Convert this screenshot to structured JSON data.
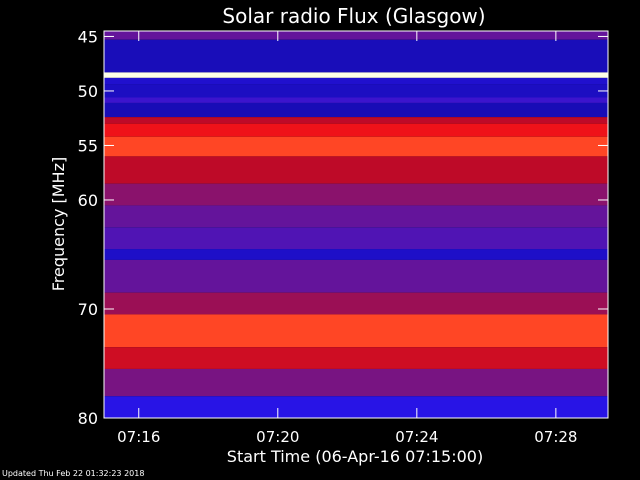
{
  "footer": {
    "updated": "Updated Thu Feb 22 01:32:23 2018"
  },
  "chart_data": {
    "type": "heatmap",
    "title": "Solar radio Flux (Glasgow)",
    "xlabel": "Start Time (06-Apr-16 07:15:00)",
    "ylabel": "Frequency [MHz]",
    "x_ticks": [
      "07:16",
      "07:20",
      "07:24",
      "07:28"
    ],
    "x_tick_minutes": [
      1,
      5,
      9,
      13
    ],
    "xlim_minutes": [
      0,
      14.5
    ],
    "y_ticks": [
      45,
      50,
      55,
      60,
      70,
      80
    ],
    "ylim": [
      80,
      44.5
    ],
    "colors": {
      "background": "#000000",
      "low": "#1a10b0",
      "mid": "#7a0a6a",
      "high": "#ff1010",
      "peak": "#ffffff"
    },
    "bands": [
      {
        "f0": 44.5,
        "f1": 45.3,
        "intensity": 0.35
      },
      {
        "f0": 45.3,
        "f1": 48.3,
        "intensity": 0.05
      },
      {
        "f0": 48.3,
        "f1": 48.8,
        "intensity": 1.0
      },
      {
        "f0": 48.8,
        "f1": 49.4,
        "intensity": 0.12
      },
      {
        "f0": 49.4,
        "f1": 50.6,
        "intensity": 0.08
      },
      {
        "f0": 50.6,
        "f1": 51.1,
        "intensity": 0.25
      },
      {
        "f0": 51.1,
        "f1": 52.4,
        "intensity": 0.04
      },
      {
        "f0": 52.4,
        "f1": 53.0,
        "intensity": 0.6
      },
      {
        "f0": 53.0,
        "f1": 54.2,
        "intensity": 0.75
      },
      {
        "f0": 54.2,
        "f1": 56.0,
        "intensity": 0.85
      },
      {
        "f0": 56.0,
        "f1": 58.5,
        "intensity": 0.6
      },
      {
        "f0": 58.5,
        "f1": 60.5,
        "intensity": 0.45
      },
      {
        "f0": 60.5,
        "f1": 62.5,
        "intensity": 0.35
      },
      {
        "f0": 62.5,
        "f1": 64.5,
        "intensity": 0.3
      },
      {
        "f0": 64.5,
        "f1": 65.5,
        "intensity": 0.1
      },
      {
        "f0": 65.5,
        "f1": 68.5,
        "intensity": 0.35
      },
      {
        "f0": 68.5,
        "f1": 70.5,
        "intensity": 0.5
      },
      {
        "f0": 70.5,
        "f1": 73.5,
        "intensity": 0.85
      },
      {
        "f0": 73.5,
        "f1": 75.5,
        "intensity": 0.65
      },
      {
        "f0": 75.5,
        "f1": 78.0,
        "intensity": 0.4
      },
      {
        "f0": 78.0,
        "f1": 80.0,
        "intensity": 0.2
      }
    ]
  }
}
